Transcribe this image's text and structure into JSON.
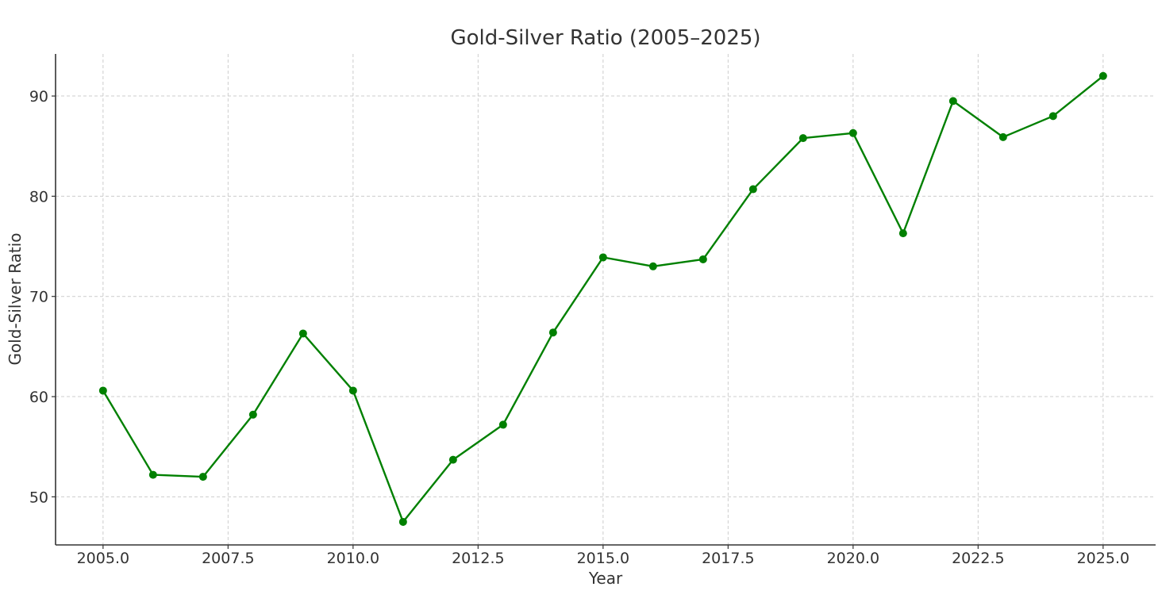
{
  "chart_data": {
    "type": "line",
    "title": "Gold-Silver Ratio (2005–2025)",
    "xlabel": "Year",
    "ylabel": "Gold-Silver Ratio",
    "xlim": [
      2004.05,
      2026.05
    ],
    "ylim": [
      45.2,
      94.2
    ],
    "xticks": [
      2005.0,
      2007.5,
      2010.0,
      2012.5,
      2015.0,
      2017.5,
      2020.0,
      2022.5,
      2025.0
    ],
    "xtick_labels": [
      "2005.0",
      "2007.5",
      "2010.0",
      "2012.5",
      "2015.0",
      "2017.5",
      "2020.0",
      "2022.5",
      "2025.0"
    ],
    "yticks": [
      50,
      60,
      70,
      80,
      90
    ],
    "ytick_labels": [
      "50",
      "60",
      "70",
      "80",
      "90"
    ],
    "grid": true,
    "color": "#008000",
    "marker": "circle",
    "x": [
      2005,
      2006,
      2007,
      2008,
      2009,
      2010,
      2011,
      2012,
      2013,
      2014,
      2015,
      2016,
      2017,
      2018,
      2019,
      2020,
      2021,
      2022,
      2023,
      2024,
      2025
    ],
    "values": [
      60.6,
      52.2,
      52.0,
      58.2,
      66.3,
      60.6,
      47.5,
      53.7,
      57.2,
      66.4,
      73.9,
      73.0,
      73.7,
      80.7,
      85.8,
      86.3,
      76.3,
      89.5,
      85.9,
      88.0,
      92.0
    ]
  }
}
